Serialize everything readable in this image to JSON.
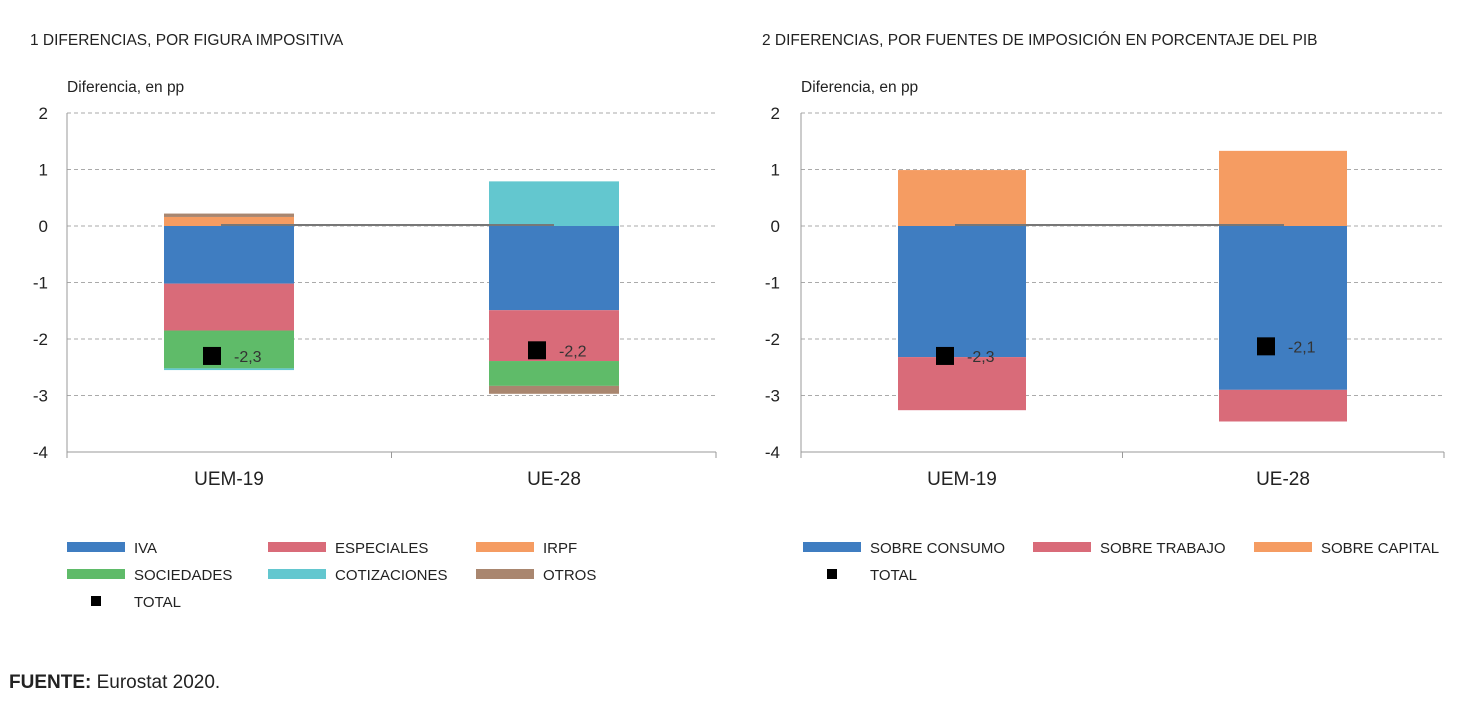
{
  "source": {
    "label": "FUENTE:",
    "text": "Eurostat 2020."
  },
  "chart_data": [
    {
      "type": "bar",
      "stacked": true,
      "title": "1  DIFERENCIAS, POR FIGURA IMPOSITIVA",
      "ylabel": "Diferencia, en pp",
      "ylim": [
        -4,
        2
      ],
      "yticks": [
        2,
        1,
        0,
        -1,
        -2,
        -3,
        -4
      ],
      "grid": true,
      "legend_position": "bottom",
      "categories": [
        "UEM-19",
        "UE-28"
      ],
      "series": [
        {
          "name": "IVA",
          "color": "#3f7dc1",
          "values": [
            -1.02,
            -1.49
          ]
        },
        {
          "name": "ESPECIALES",
          "color": "#d96b79",
          "values": [
            -0.83,
            -0.9
          ]
        },
        {
          "name": "IRPF",
          "color": "#f59c62",
          "values": [
            0.16,
            0
          ]
        },
        {
          "name": "SOCIEDADES",
          "color": "#5fbb69",
          "values": [
            -0.67,
            -0.44
          ]
        },
        {
          "name": "COTIZACIONES",
          "color": "#63c7cf",
          "values": [
            -0.03,
            0.79
          ]
        },
        {
          "name": "OTROS",
          "color": "#a9866f",
          "values": [
            0.06,
            -0.14
          ]
        }
      ],
      "total": {
        "name": "TOTAL",
        "values": [
          -2.3,
          -2.2
        ],
        "labels": [
          "-2,3",
          "-2,2"
        ]
      }
    },
    {
      "type": "bar",
      "stacked": true,
      "title": "2  DIFERENCIAS, POR FUENTES DE IMPOSICIÓN EN PORCENTAJE DEL PIB",
      "ylabel": "Diferencia, en pp",
      "ylim": [
        -4,
        2
      ],
      "yticks": [
        2,
        1,
        0,
        -1,
        -2,
        -3,
        -4
      ],
      "grid": true,
      "legend_position": "bottom",
      "categories": [
        "UEM-19",
        "UE-28"
      ],
      "series": [
        {
          "name": "SOBRE CONSUMO",
          "color": "#3f7dc1",
          "values": [
            -2.32,
            -2.9
          ]
        },
        {
          "name": "SOBRE TRABAJO",
          "color": "#d96b79",
          "values": [
            -0.94,
            -0.56
          ]
        },
        {
          "name": "SOBRE CAPITAL",
          "color": "#f59c62",
          "values": [
            0.99,
            1.33
          ]
        }
      ],
      "total": {
        "name": "TOTAL",
        "values": [
          -2.3,
          -2.13
        ],
        "labels": [
          "-2,3",
          "-2,1"
        ]
      }
    }
  ]
}
